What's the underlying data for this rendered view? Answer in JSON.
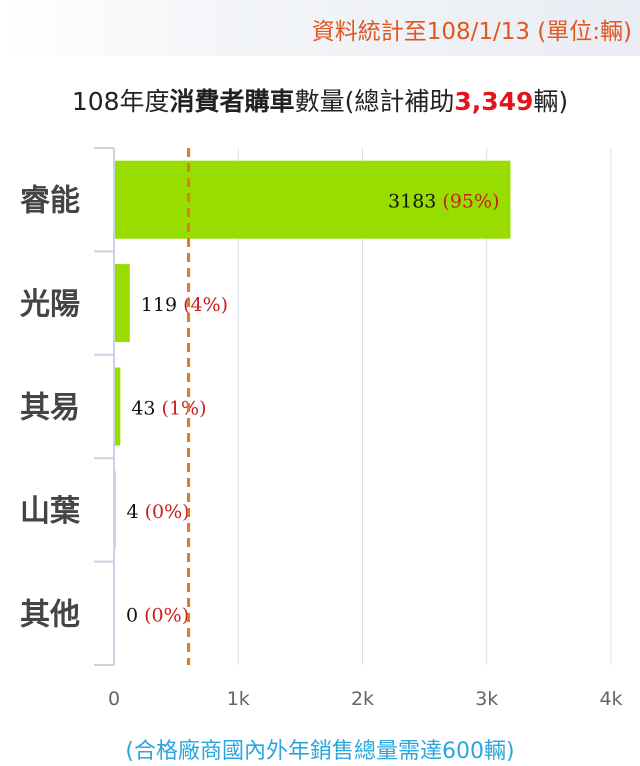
{
  "banner": {
    "text": "資料統計至108/1/13 (單位:輛)"
  },
  "title": {
    "prefix": "108年度",
    "emphasis": "消費者購車",
    "middle": "數量(總計補助",
    "total": "3,349",
    "suffix": "輛)"
  },
  "footnote": "(合格廠商國內外年銷售總量需達600輛)",
  "chart_data": {
    "type": "bar",
    "orientation": "horizontal",
    "categories": [
      "睿能",
      "光陽",
      "其易",
      "山葉",
      "其他"
    ],
    "values": [
      3183,
      119,
      43,
      4,
      0
    ],
    "value_labels": [
      "3183",
      "119",
      "43",
      "4",
      "0"
    ],
    "percent_labels": [
      "(95%)",
      "(4%)",
      "(1%)",
      "(0%)",
      "(0%)"
    ],
    "xlim": [
      0,
      4000
    ],
    "xticks": [
      0,
      1000,
      2000,
      3000,
      4000
    ],
    "xtick_labels": [
      "0",
      "1k",
      "2k",
      "3k",
      "4k"
    ],
    "reference_line": {
      "value": 600,
      "style": "dashed"
    },
    "grid": true,
    "colors": {
      "bar": "#99dd00",
      "percent": "#c81e1e",
      "reference_line": "#e07a1f",
      "grid": "#d9e0ea",
      "axis": "#c8d4e3"
    }
  }
}
